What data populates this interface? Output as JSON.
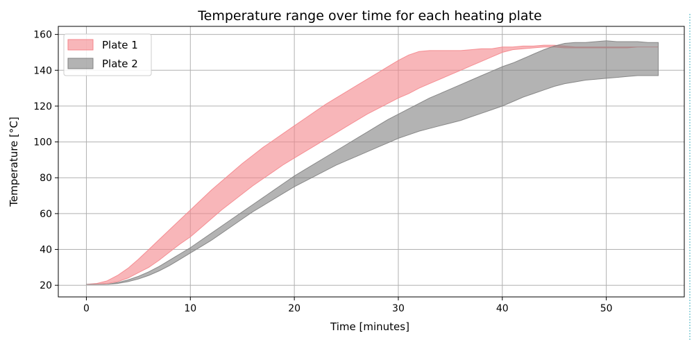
{
  "chart_data": {
    "type": "area",
    "title": "Temperature range over time for each heating plate",
    "xlabel": "Time [minutes]",
    "ylabel": "Temperature [°C]",
    "xlim": [
      -2.7,
      57.5
    ],
    "ylim": [
      13.5,
      164.5
    ],
    "xticks": [
      0,
      10,
      20,
      30,
      40,
      50
    ],
    "yticks": [
      20,
      40,
      60,
      80,
      100,
      120,
      140,
      160
    ],
    "grid": true,
    "legend_position": "top-left",
    "x": [
      0,
      1,
      2,
      3,
      4,
      5,
      6,
      7,
      8,
      9,
      10,
      11,
      12,
      13,
      14,
      15,
      16,
      17,
      18,
      19,
      20,
      21,
      22,
      23,
      24,
      25,
      26,
      27,
      28,
      29,
      30,
      31,
      32,
      33,
      34,
      35,
      36,
      37,
      38,
      39,
      40,
      41,
      42,
      43,
      44,
      45,
      46,
      47,
      48,
      49,
      50,
      51,
      52,
      53,
      54,
      55
    ],
    "series": [
      {
        "name": "Plate 1",
        "color": "#f4858b",
        "opacity": 0.6,
        "lower": [
          20.5,
          20.5,
          21,
          22,
          24,
          27,
          30,
          34,
          38.5,
          43,
          47,
          52,
          57,
          62,
          66.5,
          71,
          75.5,
          79.5,
          83.5,
          87.5,
          91,
          94.5,
          98,
          101.5,
          105,
          108.5,
          112,
          115.5,
          118.5,
          121.5,
          124.5,
          127,
          130,
          132.5,
          135,
          137.5,
          140,
          142.5,
          145,
          147.5,
          150,
          151.5,
          152,
          152.5,
          153,
          153,
          152.5,
          152.5,
          152.5,
          152.5,
          152.5,
          152.5,
          152.5,
          153,
          153,
          153
        ],
        "upper": [
          20.5,
          21,
          22.5,
          25.5,
          29.5,
          34.5,
          40,
          45.5,
          51,
          56.5,
          62,
          67.5,
          73,
          78,
          83,
          88,
          92.5,
          97,
          101,
          105,
          109,
          113,
          117,
          121,
          124.5,
          128,
          131.5,
          135,
          138.5,
          142,
          145.5,
          148.5,
          150.5,
          151,
          151,
          151,
          151,
          151.5,
          152,
          152,
          153,
          153,
          153.5,
          153.5,
          154,
          154,
          153.5,
          153,
          153,
          153,
          153,
          153,
          153,
          153,
          153,
          153
        ]
      },
      {
        "name": "Plate 2",
        "color": "#808080",
        "opacity": 0.6,
        "lower": [
          20.5,
          20.5,
          20.5,
          21,
          22,
          23.5,
          25.5,
          28,
          31,
          34.5,
          38,
          41.5,
          45,
          49,
          53,
          57,
          61,
          64.5,
          68,
          71.5,
          75,
          78,
          81,
          84,
          87,
          89.5,
          92,
          94.5,
          97,
          99.5,
          102,
          104,
          106,
          107.5,
          109,
          110.5,
          112,
          114,
          116,
          118,
          120,
          122.5,
          125,
          127,
          129,
          131,
          132.5,
          133.5,
          134.5,
          135,
          135.5,
          136,
          136.5,
          137,
          137,
          137
        ],
        "upper": [
          20.5,
          20.5,
          20.5,
          21.5,
          23,
          25,
          27.5,
          30.5,
          34,
          37.5,
          41,
          45,
          49,
          53,
          57,
          61,
          65,
          69,
          73,
          77,
          81,
          84.5,
          88,
          91.5,
          95,
          98.5,
          102,
          105.5,
          109,
          112.5,
          115.5,
          118.5,
          121.5,
          124.5,
          127,
          129.5,
          132,
          134.5,
          137,
          139.5,
          142,
          144,
          146.5,
          149,
          151.5,
          153.5,
          155,
          155.5,
          155.5,
          156,
          156.5,
          156,
          156,
          156,
          155.5,
          155.5
        ]
      }
    ]
  }
}
